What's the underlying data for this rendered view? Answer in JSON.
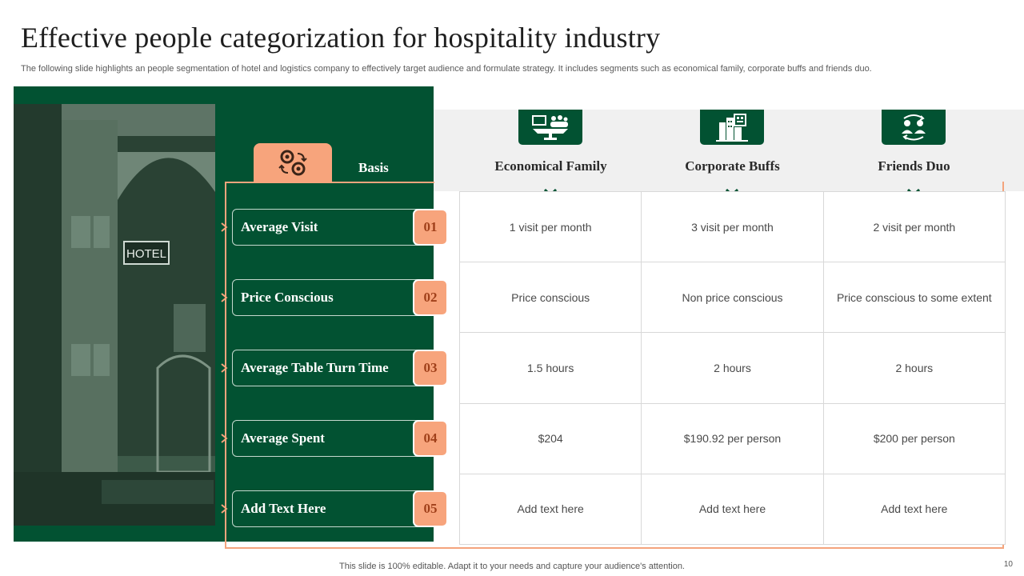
{
  "title": "Effective people categorization for hospitality industry",
  "subtitle": "The following slide highlights an people segmentation of hotel and logistics company to effectively target audience and formulate strategy. It includes segments such as economical family, corporate buffs and friends duo.",
  "photo": {
    "sign_text": "HOTEL"
  },
  "basis": {
    "label": "Basis",
    "icon": "gears-icon"
  },
  "rows": [
    {
      "label": "Average Visit",
      "num": "01"
    },
    {
      "label": "Price Conscious",
      "num": "02"
    },
    {
      "label": "Average Table Turn Time",
      "num": "03"
    },
    {
      "label": "Average Spent",
      "num": "04"
    },
    {
      "label": "Add Text Here",
      "num": "05"
    }
  ],
  "columns": [
    {
      "name": "Economical Family",
      "icon": "family-dining-icon"
    },
    {
      "name": "Corporate Buffs",
      "icon": "office-buildings-icon"
    },
    {
      "name": "Friends Duo",
      "icon": "people-exchange-icon"
    }
  ],
  "cells": [
    [
      "1 visit per month",
      "3 visit per month",
      "2 visit per month"
    ],
    [
      "Price conscious",
      "Non price conscious",
      "Price conscious to some extent"
    ],
    [
      "1.5 hours",
      "2 hours",
      "2 hours"
    ],
    [
      "$204",
      "$190.92 per person",
      "$200 per person"
    ],
    [
      "Add text here",
      "Add text here",
      "Add text here"
    ]
  ],
  "footer": "This slide is 100% editable. Adapt it to your needs and capture your audience's attention.",
  "page_number": "10",
  "colors": {
    "green": "#025232",
    "orange": "#f7a47c",
    "grey_band": "#f0f0f0"
  }
}
